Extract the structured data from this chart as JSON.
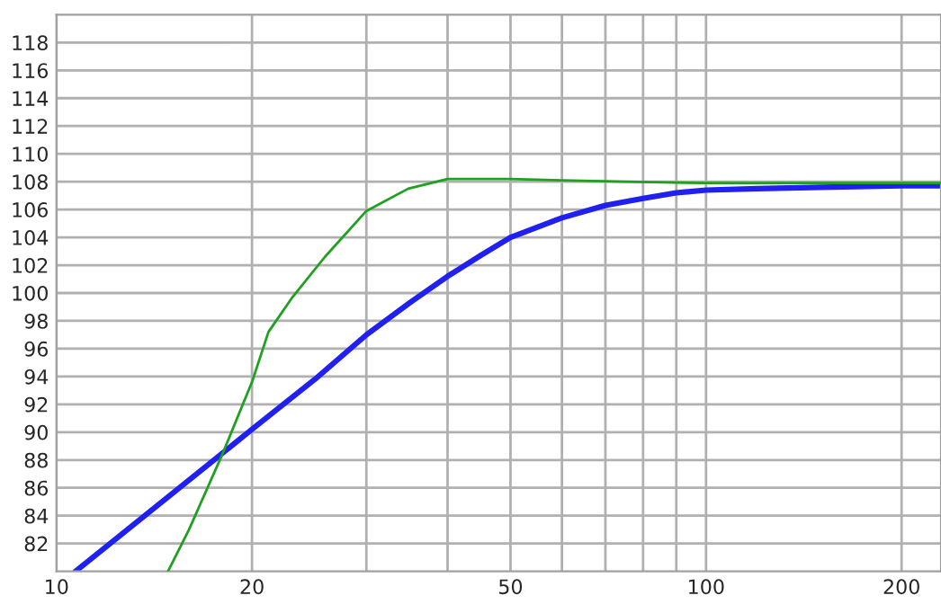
{
  "chart_data": {
    "type": "line",
    "log": "x",
    "grid": true,
    "xlim": [
      10,
      230
    ],
    "xticks": [
      10,
      20,
      {
        "value": 30,
        "label": null
      },
      {
        "value": 40,
        "label": null
      },
      50,
      {
        "value": 60,
        "label": null
      },
      {
        "value": 70,
        "label": null
      },
      {
        "value": 80,
        "label": null
      },
      {
        "value": 90,
        "label": null
      },
      100,
      200
    ],
    "ylim": [
      80,
      120
    ],
    "yticks": [
      82,
      84,
      86,
      88,
      90,
      92,
      94,
      96,
      98,
      100,
      102,
      104,
      106,
      108,
      110,
      112,
      114,
      116,
      118
    ],
    "series": [
      {
        "color": "#20a020",
        "x": [
          14.85,
          16,
          18,
          20,
          21.2,
          23,
          25.9,
          30,
          34.8,
          40,
          50,
          60,
          75,
          100,
          150,
          230
        ],
        "values": [
          80,
          83,
          88.4,
          93.6,
          97.2,
          99.6,
          102.6,
          105.9,
          107.5,
          108.2,
          108.2,
          108.1,
          108.0,
          107.9,
          107.9,
          107.9
        ]
      },
      {
        "color": "#2020f0",
        "x": [
          10.7,
          15,
          20,
          25,
          30,
          35,
          40,
          45,
          50,
          60,
          70,
          80,
          90,
          100,
          120,
          150,
          200,
          230
        ],
        "values": [
          80,
          85.5,
          90.2,
          93.8,
          97.0,
          99.3,
          101.2,
          102.7,
          104.0,
          105.4,
          106.3,
          106.8,
          107.2,
          107.4,
          107.5,
          107.6,
          107.7,
          107.7
        ]
      }
    ]
  }
}
